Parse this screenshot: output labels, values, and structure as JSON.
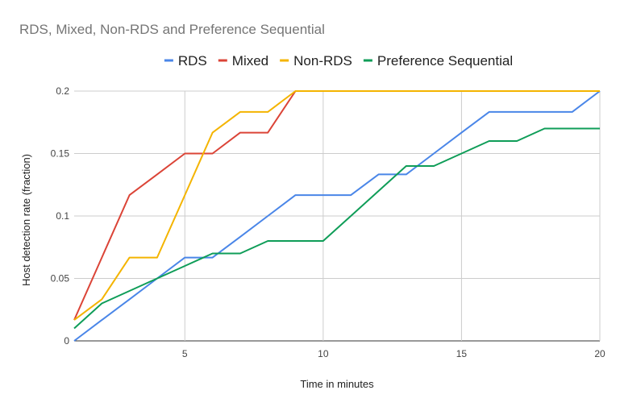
{
  "chart_data": {
    "type": "line",
    "title": "RDS, Mixed, Non-RDS and Preference Sequential",
    "xlabel": "Time in minutes",
    "ylabel": "Host detection rate (fraction)",
    "xlim": [
      1,
      20
    ],
    "ylim": [
      0,
      0.2
    ],
    "x_ticks": [
      5,
      10,
      15,
      20
    ],
    "y_ticks": [
      0,
      0.05,
      0.1,
      0.15,
      0.2
    ],
    "x_tick_labels": [
      "5",
      "10",
      "15",
      "20"
    ],
    "y_tick_labels": [
      "0",
      "0.05",
      "0.1",
      "0.15",
      "0.2"
    ],
    "grid": true,
    "legend_position": "top",
    "x": [
      1,
      2,
      3,
      4,
      5,
      6,
      7,
      8,
      9,
      10,
      11,
      12,
      13,
      14,
      15,
      16,
      17,
      18,
      19,
      20
    ],
    "series": [
      {
        "name": "RDS",
        "color": "#4a86e8",
        "values": [
          0,
          0.0167,
          0.0333,
          0.05,
          0.0667,
          0.0667,
          0.0833,
          0.1,
          0.1167,
          0.1167,
          0.1167,
          0.1333,
          0.1333,
          0.15,
          0.1667,
          0.1833,
          0.1833,
          0.1833,
          0.1833,
          0.2
        ]
      },
      {
        "name": "Mixed",
        "color": "#db4437",
        "values": [
          0.0167,
          0.0667,
          0.1167,
          0.1333,
          0.15,
          0.15,
          0.1667,
          0.1667,
          0.2,
          0.2,
          0.2,
          0.2,
          0.2,
          0.2,
          0.2,
          0.2,
          0.2,
          0.2,
          0.2,
          0.2
        ]
      },
      {
        "name": "Non-RDS",
        "color": "#f4b400",
        "values": [
          0.0167,
          0.0333,
          0.0667,
          0.0667,
          0.1167,
          0.1667,
          0.1833,
          0.1833,
          0.2,
          0.2,
          0.2,
          0.2,
          0.2,
          0.2,
          0.2,
          0.2,
          0.2,
          0.2,
          0.2,
          0.2
        ]
      },
      {
        "name": "Preference Sequential",
        "color": "#0f9d58",
        "values": [
          0.01,
          0.03,
          0.04,
          0.05,
          0.06,
          0.07,
          0.07,
          0.08,
          0.08,
          0.08,
          0.1,
          0.12,
          0.14,
          0.14,
          0.15,
          0.16,
          0.16,
          0.17,
          0.17,
          0.17
        ]
      }
    ]
  }
}
